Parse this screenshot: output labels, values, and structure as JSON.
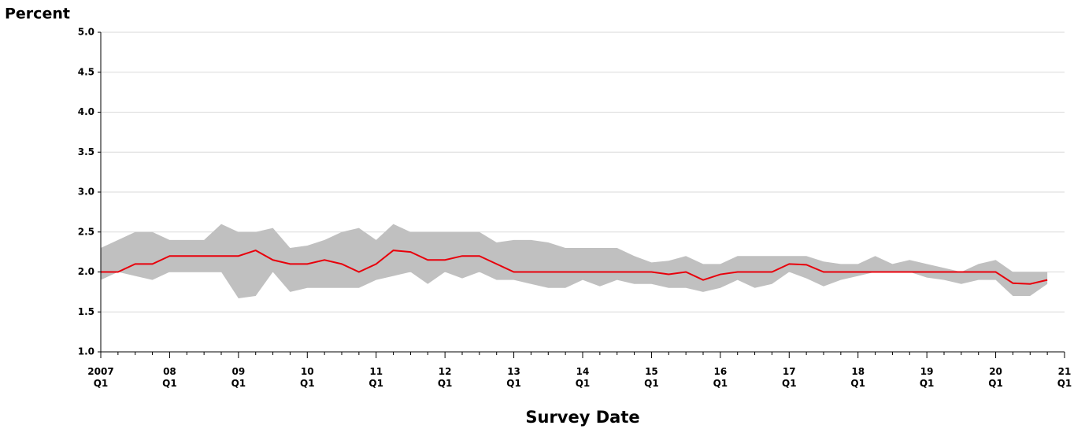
{
  "chart_data": {
    "type": "band-line",
    "y_label": "Percent",
    "x_label": "Survey Date",
    "categories": [
      "2007\nQ1",
      null,
      null,
      null,
      "08\nQ1",
      null,
      null,
      null,
      "09\nQ1",
      null,
      null,
      null,
      "10\nQ1",
      null,
      null,
      null,
      "11\nQ1",
      null,
      null,
      null,
      "12\nQ1",
      null,
      null,
      null,
      "13\nQ1",
      null,
      null,
      null,
      "14\nQ1",
      null,
      null,
      null,
      "15\nQ1",
      null,
      null,
      null,
      "16\nQ1",
      null,
      null,
      null,
      "17\nQ1",
      null,
      null,
      null,
      "18\nQ1",
      null,
      null,
      null,
      "19\nQ1",
      null,
      null,
      null,
      "20\nQ1",
      null,
      null,
      null,
      "21\nQ1"
    ],
    "series": [
      {
        "color": "#e8000b",
        "values": [
          2.0,
          2.0,
          2.1,
          2.1,
          2.2,
          2.2,
          2.2,
          2.2,
          2.2,
          2.27,
          2.15,
          2.1,
          2.1,
          2.15,
          2.1,
          2.0,
          2.1,
          2.27,
          2.25,
          2.15,
          2.15,
          2.2,
          2.2,
          2.1,
          2.0,
          2.0,
          2.0,
          2.0,
          2.0,
          2.0,
          2.0,
          2.0,
          2.0,
          1.97,
          2.0,
          1.9,
          1.97,
          2.0,
          2.0,
          2.0,
          2.1,
          2.09,
          2.0,
          2.0,
          2.0,
          2.0,
          2.0,
          2.0,
          2.0,
          2.0,
          2.0,
          2.0,
          2.0,
          1.86,
          1.85,
          1.9,
          null
        ]
      }
    ],
    "band": {
      "color": "#c0c0c0",
      "high": [
        2.3,
        2.4,
        2.5,
        2.5,
        2.4,
        2.4,
        2.4,
        2.6,
        2.5,
        2.5,
        2.55,
        2.3,
        2.33,
        2.4,
        2.5,
        2.55,
        2.4,
        2.6,
        2.5,
        2.5,
        2.5,
        2.5,
        2.5,
        2.37,
        2.4,
        2.4,
        2.37,
        2.3,
        2.3,
        2.3,
        2.3,
        2.2,
        2.12,
        2.14,
        2.2,
        2.1,
        2.1,
        2.2,
        2.2,
        2.2,
        2.2,
        2.2,
        2.13,
        2.1,
        2.1,
        2.2,
        2.1,
        2.15,
        2.1,
        2.05,
        2.0,
        2.1,
        2.15,
        2.0,
        2.0,
        2.0,
        null
      ],
      "low": [
        1.9,
        2.0,
        1.95,
        1.9,
        2.0,
        2.0,
        2.0,
        2.0,
        1.67,
        1.7,
        2.0,
        1.75,
        1.8,
        1.8,
        1.8,
        1.8,
        1.9,
        1.95,
        2.0,
        1.85,
        2.0,
        1.92,
        2.0,
        1.9,
        1.9,
        1.85,
        1.8,
        1.8,
        1.9,
        1.82,
        1.9,
        1.85,
        1.85,
        1.8,
        1.8,
        1.75,
        1.8,
        1.9,
        1.8,
        1.85,
        2.0,
        1.92,
        1.82,
        1.9,
        1.95,
        2.0,
        2.0,
        2.0,
        1.93,
        1.9,
        1.85,
        1.9,
        1.9,
        1.7,
        1.7,
        1.85,
        null
      ]
    },
    "ylim": [
      1.0,
      5.0
    ],
    "yticks": [
      {
        "value": 1.0,
        "label": "1.0"
      },
      {
        "value": 1.5,
        "label": "1.5"
      },
      {
        "value": 2.0,
        "label": "2.0"
      },
      {
        "value": 2.5,
        "label": "2.5"
      },
      {
        "value": 3.0,
        "label": "3.0"
      },
      {
        "value": 3.5,
        "label": "3.5"
      },
      {
        "value": 4.0,
        "label": "4.0"
      },
      {
        "value": 4.5,
        "label": "4.5"
      },
      {
        "value": 5.0,
        "label": "5.0"
      }
    ],
    "grid": true
  }
}
